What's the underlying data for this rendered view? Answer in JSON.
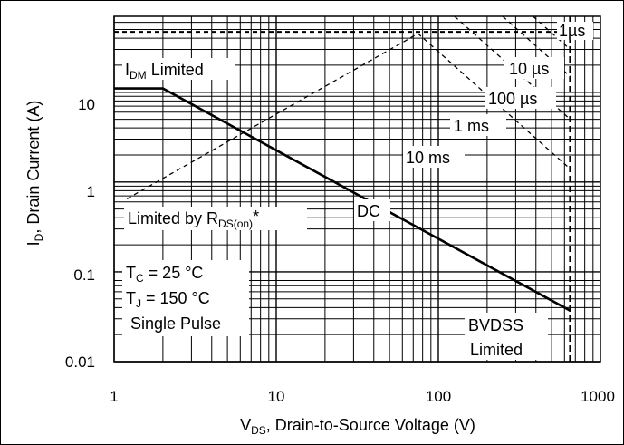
{
  "chart_data": {
    "type": "line",
    "xlabel": {
      "main": "V",
      "sub": "DS",
      "rest": ", Drain-to-Source Voltage (V)"
    },
    "ylabel": {
      "main": "I",
      "sub": "D",
      "rest": ", Drain Current (A)"
    },
    "xscale": "log",
    "yscale": "log",
    "xlim": [
      1,
      1000
    ],
    "ylim": [
      0.01,
      70
    ],
    "grid": true,
    "x_ticks": [
      {
        "value": 1,
        "label": "1"
      },
      {
        "value": 10,
        "label": "10"
      },
      {
        "value": 100,
        "label": "100"
      },
      {
        "value": 1000,
        "label": "1000"
      }
    ],
    "y_ticks": [
      {
        "value": 0.01,
        "label": "0.01"
      },
      {
        "value": 0.1,
        "label": "0.1"
      },
      {
        "value": 1,
        "label": "1"
      },
      {
        "value": 10,
        "label": "10"
      }
    ],
    "series": [
      {
        "name": "DC",
        "style": "solid",
        "x": [
          1,
          2,
          650
        ],
        "y": [
          11,
          11,
          0.037
        ]
      },
      {
        "name": "10 ms",
        "style": "dashed",
        "x": [
          1.2,
          75,
          650
        ],
        "y": [
          0.65,
          45,
          1.4
        ]
      },
      {
        "name": "1 ms",
        "style": "dashed",
        "x": [
          650
        ],
        "y": [
          5
        ]
      },
      {
        "name": "100 µs",
        "style": "dashed",
        "x": [
          650
        ],
        "y": [
          15
        ]
      },
      {
        "name": "10 µs",
        "style": "dashed",
        "x": [
          650
        ],
        "y": [
          30
        ]
      },
      {
        "name": "1µs",
        "style": "dashed",
        "x": [
          1,
          650
        ],
        "y": [
          47,
          47
        ]
      },
      {
        "name": "BVDSS",
        "style": "dashed",
        "x": [
          650,
          650
        ],
        "y": [
          0.01,
          70
        ]
      }
    ],
    "annotations": {
      "idm_limited": {
        "main": "I",
        "sub": "DM",
        "rest": " Limited"
      },
      "rds_limited": {
        "main": "Limited by R",
        "sub": "DS(on)",
        "rest": "*"
      },
      "dc": "DC",
      "t10ms": "10 ms",
      "t1ms": "1 ms",
      "t100us": "100 µs",
      "t10us": "10 µs",
      "t1us": "1µs",
      "tc": {
        "main": "T",
        "sub": "C",
        "rest": " = 25 °C"
      },
      "tj": {
        "main": "T",
        "sub": "J",
        "rest": " = 150 °C"
      },
      "single_pulse": "Single Pulse",
      "bvdss": "BVDSS",
      "limited": "Limited"
    }
  }
}
